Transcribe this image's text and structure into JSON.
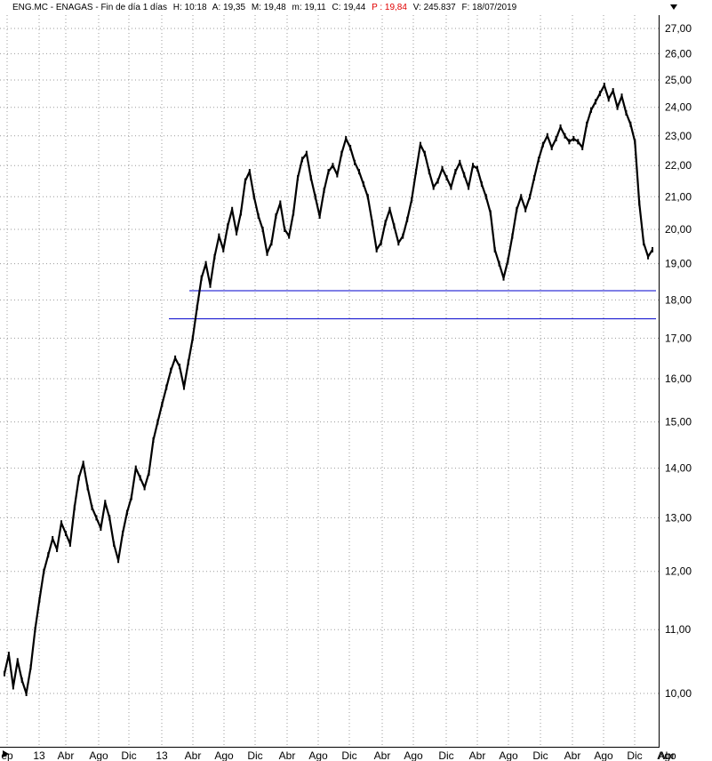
{
  "header": {
    "symbol": "ENG.MC - ENAGAS - Fin de día 1 días",
    "h": "H: 10:18",
    "a": "A: 19,35",
    "m": "M: 19,48",
    "mn": "m: 19,11",
    "c": "C: 19,44",
    "p": "P : 19,84",
    "v": "V: 245.837",
    "f": "F: 18/07/2019"
  },
  "colors": {
    "price": "#000000",
    "support": "#0000cc",
    "grid": "#9a9a9a",
    "highlight": "#e00000"
  },
  "icons": {
    "collapse": "triangle-down-icon",
    "scroll": "triangle-right-icon"
  },
  "chart_data": {
    "type": "line",
    "title": "",
    "y_scale": "log",
    "ylim": [
      9.8,
      27.5
    ],
    "y_ticks": [
      10,
      11,
      12,
      13,
      14,
      15,
      16,
      17,
      18,
      19,
      20,
      21,
      22,
      23,
      24,
      25,
      26,
      27
    ],
    "y_tick_labels": [
      "10,00",
      "11,00",
      "12,00",
      "13,00",
      "14,00",
      "15,00",
      "16,00",
      "17,00",
      "18,00",
      "19,00",
      "20,00",
      "21,00",
      "22,00",
      "23,00",
      "24,00",
      "25,00",
      "26,00",
      "27,00"
    ],
    "x_tick_labels": [
      "ep",
      "13",
      "Abr",
      "Ago",
      "Dic",
      "13",
      "Abr",
      "Ago",
      "Dic",
      "Abr",
      "Ago",
      "Dic",
      "Abr",
      "Ago",
      "Dic",
      "Abr",
      "Ago",
      "Dic",
      "Abr",
      "Ago",
      "Dic",
      "Abr",
      "Ago"
    ],
    "grid": true,
    "series": [
      {
        "values": [
          10.3,
          10.6,
          10.1,
          10.5,
          10.2,
          10.0,
          10.4,
          11.0,
          11.5,
          12.0,
          12.3,
          12.6,
          12.4,
          12.9,
          12.7,
          12.5,
          13.2,
          13.8,
          14.1,
          13.6,
          13.2,
          13.0,
          12.8,
          13.3,
          13.0,
          12.5,
          12.2,
          12.7,
          13.1,
          13.4,
          14.0,
          13.8,
          13.6,
          13.9,
          14.6,
          15.0,
          15.4,
          15.8,
          16.2,
          16.5,
          16.3,
          15.8,
          16.4,
          17.0,
          17.8,
          18.6,
          19.0,
          18.4,
          19.2,
          19.8,
          19.4,
          20.1,
          20.6,
          19.9,
          20.5,
          21.5,
          21.8,
          21.0,
          20.4,
          20.0,
          19.3,
          19.6,
          20.4,
          20.8,
          20.0,
          19.8,
          20.5,
          21.6,
          22.2,
          22.4,
          21.6,
          21.0,
          20.4,
          21.2,
          21.8,
          22.0,
          21.7,
          22.4,
          22.9,
          22.6,
          22.1,
          21.8,
          21.4,
          21.0,
          20.2,
          19.4,
          19.6,
          20.2,
          20.6,
          20.1,
          19.6,
          19.8,
          20.3,
          20.9,
          21.8,
          22.7,
          22.4,
          21.8,
          21.3,
          21.5,
          21.9,
          21.6,
          21.3,
          21.8,
          22.1,
          21.7,
          21.3,
          22.0,
          21.9,
          21.4,
          21.0,
          20.5,
          19.4,
          19.0,
          18.6,
          19.1,
          19.8,
          20.6,
          21.0,
          20.6,
          21.0,
          21.6,
          22.2,
          22.7,
          23.0,
          22.6,
          22.9,
          23.3,
          23.0,
          22.8,
          22.9,
          22.8,
          22.6,
          23.4,
          23.9,
          24.2,
          24.5,
          24.8,
          24.3,
          24.6,
          24.0,
          24.4,
          23.8,
          23.4,
          22.8,
          20.8,
          19.6,
          19.2,
          19.4
        ]
      }
    ],
    "support_levels": [
      18.25,
      17.5
    ]
  }
}
